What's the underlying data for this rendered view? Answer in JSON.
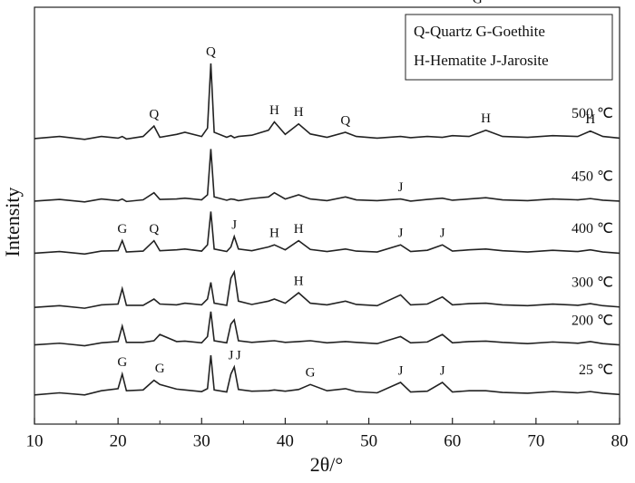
{
  "chart_data": {
    "type": "line",
    "xlabel": "2θ/°",
    "ylabel": "Intensity",
    "legend_text": [
      "Q-Quartz   G-Goethite",
      "H-Hematite   J-Jarosite"
    ],
    "xlim": [
      10,
      80
    ],
    "xticks": [
      10,
      20,
      30,
      40,
      50,
      60,
      70,
      80
    ],
    "ylim": [
      0,
      100
    ],
    "x": [
      10,
      13,
      16,
      18,
      20,
      20.5,
      21,
      23,
      24.3,
      25,
      27,
      28,
      30,
      30.7,
      31.1,
      31.5,
      33,
      33.5,
      33.9,
      34.4,
      36,
      38,
      38.7,
      40,
      41.6,
      43,
      45,
      47.2,
      48.5,
      51,
      53.8,
      55,
      57,
      58.8,
      60,
      62,
      64,
      66,
      69,
      72,
      75,
      76.5,
      78,
      80
    ],
    "series": [
      {
        "name": "500 ℃",
        "color": "#222222",
        "values": [
          68.5,
          69,
          68.3,
          69,
          68.6,
          69,
          68.4,
          69,
          71.5,
          68.8,
          69.5,
          70,
          69,
          71,
          86.5,
          70,
          68.8,
          69.2,
          68.7,
          69,
          69.3,
          70.5,
          72.5,
          69.5,
          72,
          69.6,
          68.8,
          70,
          69,
          68.6,
          69,
          68.7,
          69,
          68.8,
          69.2,
          69,
          70.5,
          69,
          68.8,
          69.2,
          69,
          70.3,
          69,
          68.6
        ],
        "peak_labels": [
          {
            "text": "Q",
            "x": 24.3
          },
          {
            "text": "Q",
            "x": 31.1
          },
          {
            "text": "H",
            "x": 38.7
          },
          {
            "text": "H",
            "x": 41.6
          },
          {
            "text": "Q",
            "x": 47.2
          },
          {
            "text": "H",
            "x": 64
          },
          {
            "text": "H",
            "x": 76.5
          }
        ]
      },
      {
        "name": "450 ℃",
        "color": "#222222",
        "values": [
          53.5,
          53.9,
          53.3,
          54,
          53.6,
          54,
          53.4,
          53.8,
          55.5,
          53.9,
          54,
          54.2,
          53.8,
          55,
          66,
          54.5,
          53.7,
          54,
          53.9,
          53.6,
          54.1,
          54.5,
          55.5,
          54,
          55,
          54,
          53.6,
          54.5,
          53.8,
          53.6,
          54,
          53.5,
          53.9,
          54.2,
          53.7,
          54,
          54.3,
          53.8,
          53.6,
          54,
          53.8,
          54.1,
          53.7,
          53.5
        ],
        "peak_labels": [
          {
            "text": "J",
            "x": 53.8
          }
        ]
      },
      {
        "name": "400 ℃",
        "color": "#222222",
        "values": [
          41,
          41.4,
          40.8,
          41.5,
          41.6,
          44,
          41.3,
          41.5,
          44,
          41.6,
          41.8,
          42,
          41.5,
          43,
          51,
          42,
          41.4,
          42.5,
          45,
          42,
          41.6,
          42.5,
          43,
          41.8,
          44,
          41.9,
          41.4,
          42,
          41.5,
          41.3,
          43,
          41.4,
          41.7,
          43,
          41.5,
          41.8,
          42,
          41.6,
          41.3,
          41.7,
          41.4,
          41.8,
          41.3,
          41
        ],
        "peak_labels": [
          {
            "text": "G",
            "x": 20.5
          },
          {
            "text": "Q",
            "x": 24.3
          },
          {
            "text": "J",
            "x": 33.9
          },
          {
            "text": "H",
            "x": 38.7
          },
          {
            "text": "H",
            "x": 41.6
          },
          {
            "text": "J",
            "x": 53.8
          },
          {
            "text": "J",
            "x": 58.8
          }
        ]
      },
      {
        "name": "300 ℃",
        "color": "#222222",
        "values": [
          28,
          28.4,
          27.8,
          28.6,
          28.8,
          32.5,
          28.5,
          28.5,
          30,
          28.8,
          28.6,
          29,
          28.6,
          30,
          34,
          29,
          28.5,
          35,
          36.5,
          29.5,
          28.7,
          29.5,
          30,
          29,
          31.5,
          29,
          28.6,
          29.5,
          28.7,
          28.4,
          31,
          28.6,
          28.8,
          30.5,
          28.6,
          28.9,
          29,
          28.6,
          28.4,
          28.8,
          28.5,
          28.9,
          28.4,
          28.1
        ],
        "peak_labels": [
          {
            "text": "H",
            "x": 41.6
          }
        ]
      },
      {
        "name": "200 ℃",
        "color": "#222222",
        "values": [
          19,
          19.4,
          18.8,
          19.5,
          19.8,
          23.5,
          19.6,
          19.6,
          20,
          21.5,
          19.8,
          19.9,
          19.5,
          21,
          27,
          20,
          19.5,
          24,
          25,
          20,
          19.6,
          19.9,
          20,
          19.6,
          19.8,
          20,
          19.5,
          19.8,
          19.6,
          19.3,
          21,
          19.5,
          19.7,
          21.5,
          19.5,
          19.8,
          19.9,
          19.6,
          19.3,
          19.7,
          19.4,
          19.8,
          19.3,
          19
        ]
      },
      {
        "name": "25 ℃",
        "color": "#222222",
        "values": [
          7,
          7.5,
          7,
          8,
          8.5,
          12,
          8,
          8.2,
          10.5,
          9.5,
          8.4,
          8.2,
          7.8,
          8.5,
          16.5,
          8.2,
          7.7,
          12,
          13.7,
          8.3,
          7.9,
          8,
          8.2,
          7.9,
          8.3,
          9.5,
          8,
          8.5,
          7.8,
          7.5,
          10,
          7.7,
          7.9,
          10,
          7.7,
          8,
          8,
          7.6,
          7.4,
          7.8,
          7.5,
          7.8,
          7.4,
          7.1
        ],
        "peak_labels": [
          {
            "text": "G",
            "x": 20.5
          },
          {
            "text": "G",
            "x": 25
          },
          {
            "text": "J",
            "x": 33.5
          },
          {
            "text": "J",
            "x": 34.4
          },
          {
            "text": "G",
            "x": 43
          },
          {
            "text": "J",
            "x": 53.8
          },
          {
            "text": "J",
            "x": 58.8
          },
          {
            "text": "G",
            "x": 63
          }
        ]
      }
    ]
  }
}
